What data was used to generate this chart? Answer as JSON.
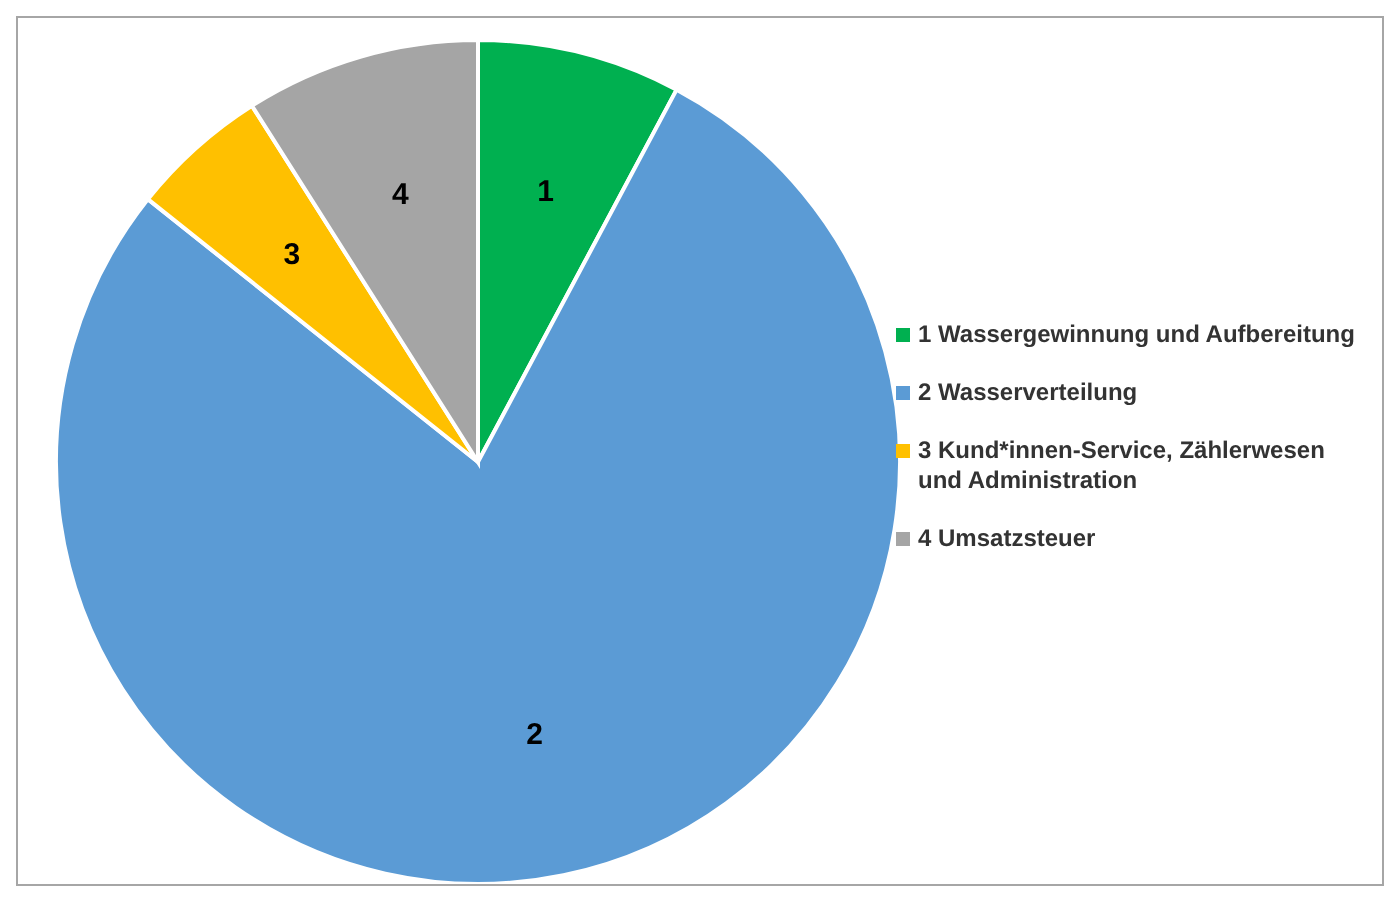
{
  "chart_data": {
    "type": "pie",
    "categories": [
      "1 Wassergewinnung und Aufbereitung",
      "2 Wasserverteilung",
      "3 Kund*innen-Service, Zählerwesen und Administration",
      "4 Umsatzsteuer"
    ],
    "values": [
      7.8,
      77.9,
      5.3,
      9.0
    ],
    "colors": [
      "#00b050",
      "#5b9bd5",
      "#ffc000",
      "#a5a5a5"
    ],
    "annotations": [
      "1",
      "2",
      "3",
      "4"
    ],
    "legend": "right"
  }
}
